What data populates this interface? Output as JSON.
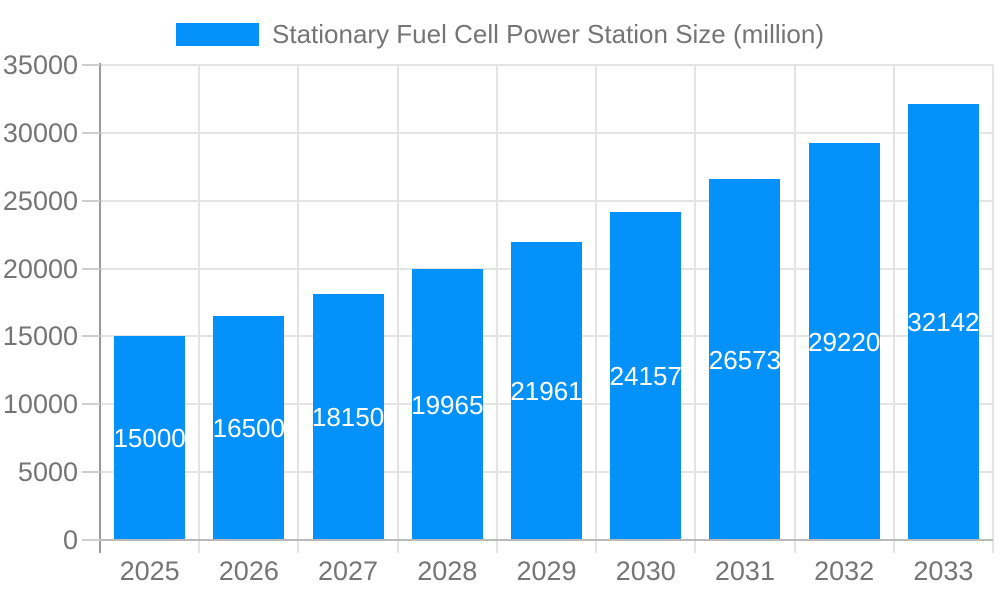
{
  "chart_data": {
    "type": "bar",
    "title": "Stationary Fuel Cell Power Station Size (million)",
    "categories": [
      "2025",
      "2026",
      "2027",
      "2028",
      "2029",
      "2030",
      "2031",
      "2032",
      "2033"
    ],
    "series": [
      {
        "name": "Stationary Fuel Cell Power Station Size (million)",
        "values": [
          15000,
          16500,
          18150,
          19965,
          21961,
          24157,
          26573,
          29220,
          32142
        ]
      }
    ],
    "value_labels_shown": true,
    "xlabel": "",
    "ylabel": "",
    "ylim": [
      0,
      35000
    ],
    "yticks": [
      0,
      5000,
      10000,
      15000,
      20000,
      25000,
      30000,
      35000
    ],
    "legend_position": "top",
    "grid": "horizontal gridlines at yticks, vertical gridlines at category boundaries",
    "colors": {
      "bar": "#0591FA",
      "grid": "#e4e4e4",
      "axis_y": "#9a9a9a",
      "axis_x": "#b9b9b9",
      "tick": "#cfcfcf",
      "label": "#757575",
      "value_label": "#ffffff",
      "background": "#ffffff"
    }
  }
}
